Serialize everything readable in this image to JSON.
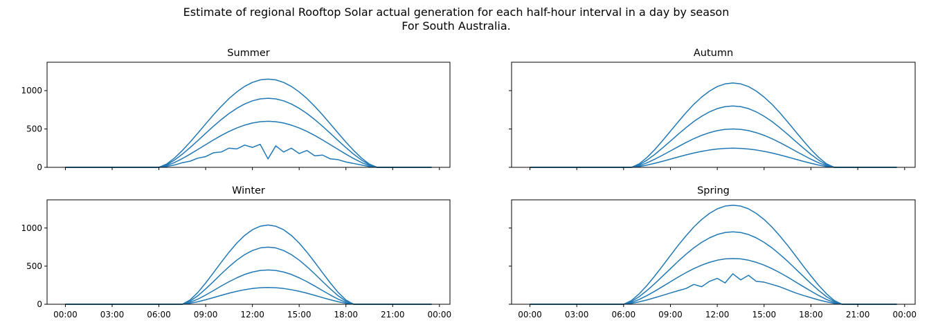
{
  "title": "Estimate of regional Rooftop Solar actual generation for each half-hour interval in a day by season",
  "subtitle": "For South Australia.",
  "chart_data": [
    {
      "type": "line",
      "title": "Summer",
      "x": [
        0,
        0.5,
        1,
        1.5,
        2,
        2.5,
        3,
        3.5,
        4,
        4.5,
        5,
        5.5,
        6,
        6.5,
        7,
        7.5,
        8,
        8.5,
        9,
        9.5,
        10,
        10.5,
        11,
        11.5,
        12,
        12.5,
        13,
        13.5,
        14,
        14.5,
        15,
        15.5,
        16,
        16.5,
        17,
        17.5,
        18,
        18.5,
        19,
        19.5,
        20,
        20.5,
        21,
        21.5,
        22,
        22.5,
        23,
        23.5
      ],
      "series": [
        {
          "color": "#1f77b4",
          "values": [
            0,
            0,
            0,
            0,
            0,
            0,
            0,
            0,
            0,
            0,
            0,
            0,
            0,
            43,
            121,
            219,
            329,
            446,
            566,
            684,
            795,
            897,
            983,
            1055,
            1107,
            1140,
            1150,
            1140,
            1107,
            1055,
            983,
            897,
            795,
            684,
            566,
            446,
            329,
            219,
            121,
            43,
            0,
            0,
            0,
            0,
            0,
            0,
            0,
            0
          ]
        },
        {
          "color": "#1f77b4",
          "values": [
            0,
            0,
            0,
            0,
            0,
            0,
            0,
            0,
            0,
            0,
            0,
            0,
            0,
            33,
            95,
            171,
            257,
            349,
            443,
            536,
            622,
            702,
            770,
            825,
            867,
            892,
            900,
            892,
            867,
            825,
            770,
            702,
            622,
            536,
            443,
            349,
            257,
            171,
            95,
            33,
            0,
            0,
            0,
            0,
            0,
            0,
            0,
            0
          ]
        },
        {
          "color": "#1f77b4",
          "values": [
            0,
            0,
            0,
            0,
            0,
            0,
            0,
            0,
            0,
            0,
            0,
            0,
            0,
            22,
            63,
            114,
            172,
            233,
            295,
            357,
            415,
            468,
            513,
            550,
            578,
            595,
            600,
            595,
            578,
            550,
            513,
            468,
            415,
            357,
            295,
            233,
            172,
            114,
            63,
            22,
            0,
            0,
            0,
            0,
            0,
            0,
            0,
            0
          ]
        },
        {
          "color": "#1f77b4",
          "values": [
            0,
            0,
            0,
            0,
            0,
            0,
            0,
            0,
            0,
            0,
            0,
            0,
            0,
            11,
            30,
            60,
            80,
            120,
            140,
            190,
            200,
            250,
            240,
            290,
            260,
            300,
            110,
            280,
            200,
            250,
            180,
            220,
            150,
            160,
            110,
            100,
            70,
            50,
            30,
            10,
            0,
            0,
            0,
            0,
            0,
            0,
            0,
            0
          ]
        }
      ],
      "xlim": [
        -1.175,
        24.675
      ],
      "ylim": [
        0,
        1370
      ],
      "xticks": [
        {
          "value": 0,
          "label": "00:00"
        },
        {
          "value": 3,
          "label": "03:00"
        },
        {
          "value": 6,
          "label": "06:00"
        },
        {
          "value": 9,
          "label": "09:00"
        },
        {
          "value": 12,
          "label": "12:00"
        },
        {
          "value": 15,
          "label": "15:00"
        },
        {
          "value": 18,
          "label": "18:00"
        },
        {
          "value": 21,
          "label": "21:00"
        },
        {
          "value": 24,
          "label": "00:00"
        }
      ],
      "yticks": [
        0,
        500,
        1000
      ]
    },
    {
      "type": "line",
      "title": "Autumn",
      "x": [
        0,
        0.5,
        1,
        1.5,
        2,
        2.5,
        3,
        3.5,
        4,
        4.5,
        5,
        5.5,
        6,
        6.5,
        7,
        7.5,
        8,
        8.5,
        9,
        9.5,
        10,
        10.5,
        11,
        11.5,
        12,
        12.5,
        13,
        13.5,
        14,
        14.5,
        15,
        15.5,
        16,
        16.5,
        17,
        17.5,
        18,
        18.5,
        19,
        19.5,
        20,
        20.5,
        21,
        21.5,
        22,
        22.5,
        23,
        23.5
      ],
      "series": [
        {
          "color": "#1f77b4",
          "values": [
            0,
            0,
            0,
            0,
            0,
            0,
            0,
            0,
            0,
            0,
            0,
            0,
            0,
            0,
            46,
            129,
            232,
            349,
            471,
            594,
            713,
            822,
            916,
            994,
            1053,
            1088,
            1100,
            1088,
            1053,
            994,
            916,
            822,
            713,
            594,
            471,
            349,
            232,
            129,
            46,
            0,
            0,
            0,
            0,
            0,
            0,
            0,
            0,
            0
          ]
        },
        {
          "color": "#1f77b4",
          "values": [
            0,
            0,
            0,
            0,
            0,
            0,
            0,
            0,
            0,
            0,
            0,
            0,
            0,
            0,
            33,
            94,
            169,
            254,
            342,
            432,
            518,
            598,
            666,
            723,
            766,
            791,
            800,
            791,
            766,
            723,
            666,
            598,
            518,
            432,
            342,
            254,
            169,
            94,
            33,
            0,
            0,
            0,
            0,
            0,
            0,
            0,
            0,
            0
          ]
        },
        {
          "color": "#1f77b4",
          "values": [
            0,
            0,
            0,
            0,
            0,
            0,
            0,
            0,
            0,
            0,
            0,
            0,
            0,
            0,
            21,
            59,
            106,
            159,
            214,
            270,
            324,
            374,
            417,
            452,
            479,
            495,
            500,
            495,
            479,
            452,
            417,
            374,
            324,
            270,
            214,
            159,
            106,
            59,
            21,
            0,
            0,
            0,
            0,
            0,
            0,
            0,
            0,
            0
          ]
        },
        {
          "color": "#1f77b4",
          "values": [
            0,
            0,
            0,
            0,
            0,
            0,
            0,
            0,
            0,
            0,
            0,
            0,
            0,
            0,
            10,
            29,
            53,
            79,
            107,
            135,
            162,
            187,
            208,
            226,
            239,
            247,
            250,
            247,
            239,
            226,
            208,
            187,
            162,
            135,
            107,
            79,
            53,
            29,
            10,
            0,
            0,
            0,
            0,
            0,
            0,
            0,
            0,
            0
          ]
        }
      ],
      "xlim": [
        -1.175,
        24.675
      ],
      "ylim": [
        0,
        1370
      ],
      "xticks": [
        {
          "value": 0,
          "label": "00:00"
        },
        {
          "value": 3,
          "label": "03:00"
        },
        {
          "value": 6,
          "label": "06:00"
        },
        {
          "value": 9,
          "label": "09:00"
        },
        {
          "value": 12,
          "label": "12:00"
        },
        {
          "value": 15,
          "label": "15:00"
        },
        {
          "value": 18,
          "label": "18:00"
        },
        {
          "value": 21,
          "label": "21:00"
        },
        {
          "value": 24,
          "label": "00:00"
        }
      ],
      "yticks": [
        0,
        500,
        1000
      ]
    },
    {
      "type": "line",
      "title": "Winter",
      "x": [
        0,
        0.5,
        1,
        1.5,
        2,
        2.5,
        3,
        3.5,
        4,
        4.5,
        5,
        5.5,
        6,
        6.5,
        7,
        7.5,
        8,
        8.5,
        9,
        9.5,
        10,
        10.5,
        11,
        11.5,
        12,
        12.5,
        13,
        13.5,
        14,
        14.5,
        15,
        15.5,
        16,
        16.5,
        17,
        17.5,
        18,
        18.5,
        19,
        19.5,
        20,
        20.5,
        21,
        21.5,
        22,
        22.5,
        23,
        23.5
      ],
      "series": [
        {
          "color": "#1f77b4",
          "values": [
            0,
            0,
            0,
            0,
            0,
            0,
            0,
            0,
            0,
            0,
            0,
            0,
            0,
            0,
            0,
            0,
            56,
            155,
            279,
            413,
            551,
            683,
            803,
            903,
            978,
            1024,
            1040,
            1024,
            978,
            903,
            803,
            683,
            551,
            413,
            279,
            155,
            56,
            0,
            0,
            0,
            0,
            0,
            0,
            0,
            0,
            0,
            0,
            0
          ]
        },
        {
          "color": "#1f77b4",
          "values": [
            0,
            0,
            0,
            0,
            0,
            0,
            0,
            0,
            0,
            0,
            0,
            0,
            0,
            0,
            0,
            0,
            40,
            112,
            201,
            298,
            398,
            493,
            579,
            651,
            705,
            739,
            750,
            739,
            705,
            651,
            579,
            493,
            398,
            298,
            201,
            112,
            40,
            0,
            0,
            0,
            0,
            0,
            0,
            0,
            0,
            0,
            0,
            0
          ]
        },
        {
          "color": "#1f77b4",
          "values": [
            0,
            0,
            0,
            0,
            0,
            0,
            0,
            0,
            0,
            0,
            0,
            0,
            0,
            0,
            0,
            0,
            24,
            67,
            121,
            179,
            239,
            296,
            347,
            391,
            423,
            443,
            450,
            443,
            423,
            391,
            347,
            296,
            239,
            179,
            121,
            67,
            24,
            0,
            0,
            0,
            0,
            0,
            0,
            0,
            0,
            0,
            0,
            0
          ]
        },
        {
          "color": "#1f77b4",
          "values": [
            0,
            0,
            0,
            0,
            0,
            0,
            0,
            0,
            0,
            0,
            0,
            0,
            0,
            0,
            0,
            0,
            12,
            33,
            59,
            87,
            117,
            145,
            170,
            191,
            207,
            217,
            220,
            217,
            207,
            191,
            170,
            145,
            117,
            87,
            59,
            33,
            12,
            0,
            0,
            0,
            0,
            0,
            0,
            0,
            0,
            0,
            0,
            0
          ]
        }
      ],
      "xlim": [
        -1.175,
        24.675
      ],
      "ylim": [
        0,
        1370
      ],
      "xticks": [
        {
          "value": 0,
          "label": "00:00"
        },
        {
          "value": 3,
          "label": "03:00"
        },
        {
          "value": 6,
          "label": "06:00"
        },
        {
          "value": 9,
          "label": "09:00"
        },
        {
          "value": 12,
          "label": "12:00"
        },
        {
          "value": 15,
          "label": "15:00"
        },
        {
          "value": 18,
          "label": "18:00"
        },
        {
          "value": 21,
          "label": "21:00"
        },
        {
          "value": 24,
          "label": "00:00"
        }
      ],
      "yticks": [
        0,
        500,
        1000
      ]
    },
    {
      "type": "line",
      "title": "Spring",
      "x": [
        0,
        0.5,
        1,
        1.5,
        2,
        2.5,
        3,
        3.5,
        4,
        4.5,
        5,
        5.5,
        6,
        6.5,
        7,
        7.5,
        8,
        8.5,
        9,
        9.5,
        10,
        10.5,
        11,
        11.5,
        12,
        12.5,
        13,
        13.5,
        14,
        14.5,
        15,
        15.5,
        16,
        16.5,
        17,
        17.5,
        18,
        18.5,
        19,
        19.5,
        20,
        20.5,
        21,
        21.5,
        22,
        22.5,
        23,
        23.5
      ],
      "series": [
        {
          "color": "#1f77b4",
          "values": [
            0,
            0,
            0,
            0,
            0,
            0,
            0,
            0,
            0,
            0,
            0,
            0,
            0,
            48,
            137,
            247,
            372,
            504,
            640,
            774,
            898,
            1014,
            1112,
            1192,
            1252,
            1288,
            1300,
            1288,
            1252,
            1192,
            1112,
            1014,
            898,
            774,
            640,
            504,
            372,
            247,
            137,
            48,
            0,
            0,
            0,
            0,
            0,
            0,
            0,
            0
          ]
        },
        {
          "color": "#1f77b4",
          "values": [
            0,
            0,
            0,
            0,
            0,
            0,
            0,
            0,
            0,
            0,
            0,
            0,
            0,
            35,
            100,
            181,
            272,
            369,
            467,
            565,
            656,
            741,
            812,
            871,
            915,
            941,
            950,
            941,
            915,
            871,
            812,
            741,
            656,
            565,
            467,
            369,
            272,
            181,
            100,
            35,
            0,
            0,
            0,
            0,
            0,
            0,
            0,
            0
          ]
        },
        {
          "color": "#1f77b4",
          "values": [
            0,
            0,
            0,
            0,
            0,
            0,
            0,
            0,
            0,
            0,
            0,
            0,
            0,
            22,
            63,
            114,
            172,
            233,
            295,
            357,
            415,
            468,
            513,
            550,
            578,
            595,
            600,
            595,
            578,
            550,
            513,
            468,
            415,
            357,
            295,
            233,
            172,
            114,
            63,
            22,
            0,
            0,
            0,
            0,
            0,
            0,
            0,
            0
          ]
        },
        {
          "color": "#1f77b4",
          "values": [
            0,
            0,
            0,
            0,
            0,
            0,
            0,
            0,
            0,
            0,
            0,
            0,
            0,
            11,
            32,
            57,
            86,
            116,
            148,
            178,
            207,
            260,
            230,
            300,
            340,
            280,
            400,
            320,
            380,
            300,
            290,
            260,
            230,
            190,
            150,
            116,
            86,
            57,
            32,
            11,
            0,
            0,
            0,
            0,
            0,
            0,
            0,
            0
          ]
        }
      ],
      "xlim": [
        -1.175,
        24.675
      ],
      "ylim": [
        0,
        1370
      ],
      "xticks": [
        {
          "value": 0,
          "label": "00:00"
        },
        {
          "value": 3,
          "label": "03:00"
        },
        {
          "value": 6,
          "label": "06:00"
        },
        {
          "value": 9,
          "label": "09:00"
        },
        {
          "value": 12,
          "label": "12:00"
        },
        {
          "value": 15,
          "label": "15:00"
        },
        {
          "value": 18,
          "label": "18:00"
        },
        {
          "value": 21,
          "label": "21:00"
        },
        {
          "value": 24,
          "label": "00:00"
        }
      ],
      "yticks": [
        0,
        500,
        1000
      ]
    }
  ]
}
